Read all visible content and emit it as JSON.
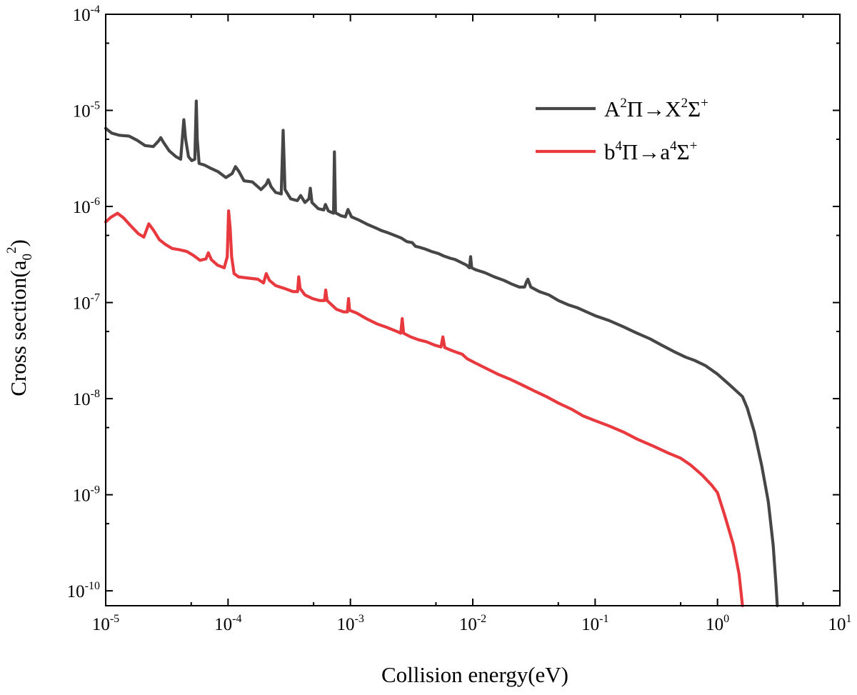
{
  "chart_data": {
    "type": "line",
    "scale": {
      "x": "log",
      "y": "log"
    },
    "xlabel": "Collision energy(eV)",
    "ylabel": "Cross section(a0^2)",
    "ylabel_parts": {
      "base": "Cross section(a",
      "sub": "0",
      "sup": "2",
      "close": ")"
    },
    "xlim": [
      1e-05,
      10
    ],
    "ylim": [
      7e-11,
      0.0001
    ],
    "x_ticks": [
      {
        "value": 1e-05,
        "base": "10",
        "exp": "-5"
      },
      {
        "value": 0.0001,
        "base": "10",
        "exp": "-4"
      },
      {
        "value": 0.001,
        "base": "10",
        "exp": "-3"
      },
      {
        "value": 0.01,
        "base": "10",
        "exp": "-2"
      },
      {
        "value": 0.1,
        "base": "10",
        "exp": "-1"
      },
      {
        "value": 1,
        "base": "10",
        "exp": "0"
      },
      {
        "value": 10,
        "base": "10",
        "exp": "1"
      }
    ],
    "y_ticks": [
      {
        "value": 1e-10,
        "base": "10",
        "exp": "-10"
      },
      {
        "value": 1e-09,
        "base": "10",
        "exp": "-9"
      },
      {
        "value": 1e-08,
        "base": "10",
        "exp": "-8"
      },
      {
        "value": 1e-07,
        "base": "10",
        "exp": "-7"
      },
      {
        "value": 1e-06,
        "base": "10",
        "exp": "-6"
      },
      {
        "value": 1e-05,
        "base": "10",
        "exp": "-5"
      },
      {
        "value": 0.0001,
        "base": "10",
        "exp": "-4"
      }
    ],
    "legend_position": "top-right",
    "series": [
      {
        "name": "A2Π→X2Σ+",
        "label_parts": [
          "A",
          "2",
          "Π→X",
          "2",
          "Σ",
          "+"
        ],
        "color": "#464646",
        "points": [
          [
            1e-05,
            6.5e-06
          ],
          [
            1.12e-05,
            5.8e-06
          ],
          [
            1.3e-05,
            5.5e-06
          ],
          [
            1.55e-05,
            5.4e-06
          ],
          [
            1.8e-05,
            4.9e-06
          ],
          [
            2.1e-05,
            4.3e-06
          ],
          [
            2.45e-05,
            4.2e-06
          ],
          [
            2.7e-05,
            4.8e-06
          ],
          [
            2.82e-05,
            5.2e-06
          ],
          [
            2.95e-05,
            4.7e-06
          ],
          [
            3.3e-05,
            3.8e-06
          ],
          [
            3.75e-05,
            3.3e-06
          ],
          [
            4.1e-05,
            3.1e-06
          ],
          [
            4.25e-05,
            5.5e-06
          ],
          [
            4.35e-05,
            8e-06
          ],
          [
            4.5e-05,
            5e-06
          ],
          [
            4.75e-05,
            3.3e-06
          ],
          [
            5.05e-05,
            3e-06
          ],
          [
            5.35e-05,
            3.1e-06
          ],
          [
            5.5e-05,
            1.25e-05
          ],
          [
            5.6e-05,
            5e-06
          ],
          [
            5.8e-05,
            2.8e-06
          ],
          [
            6.4e-05,
            2.7e-06
          ],
          [
            7.2e-05,
            2.5e-06
          ],
          [
            8.3e-05,
            2.3e-06
          ],
          [
            9.6e-05,
            2e-06
          ],
          [
            0.000108,
            2.2e-06
          ],
          [
            0.000115,
            2.6e-06
          ],
          [
            0.000123,
            2.3e-06
          ],
          [
            0.000135,
            1.85e-06
          ],
          [
            0.000158,
            1.8e-06
          ],
          [
            0.000186,
            1.5e-06
          ],
          [
            0.000205,
            1.7e-06
          ],
          [
            0.000213,
            1.9e-06
          ],
          [
            0.000225,
            1.6e-06
          ],
          [
            0.000245,
            1.4e-06
          ],
          [
            0.000272,
            1.35e-06
          ],
          [
            0.000282,
            6.2e-06
          ],
          [
            0.000292,
            1.5e-06
          ],
          [
            0.000325,
            1.2e-06
          ],
          [
            0.000368,
            1.15e-06
          ],
          [
            0.000392,
            1.3e-06
          ],
          [
            0.000425,
            1.1e-06
          ],
          [
            0.000458,
            1.2e-06
          ],
          [
            0.00047,
            1.55e-06
          ],
          [
            0.000485,
            1.1e-06
          ],
          [
            0.000545,
            9.5e-07
          ],
          [
            0.000605,
            9.2e-07
          ],
          [
            0.000625,
            1.05e-06
          ],
          [
            0.00066,
            9e-07
          ],
          [
            0.000698,
            8.7e-07
          ],
          [
            0.000728,
            8.5e-07
          ],
          [
            0.00074,
            3.7e-06
          ],
          [
            0.000755,
            8.6e-07
          ],
          [
            0.00084,
            8e-07
          ],
          [
            0.00091,
            7.8e-07
          ],
          [
            0.000955,
            9.3e-07
          ],
          [
            0.00102,
            7.8e-07
          ],
          [
            0.00118,
            7.2e-07
          ],
          [
            0.00138,
            6.5e-07
          ],
          [
            0.0016,
            6e-07
          ],
          [
            0.0018,
            5.6e-07
          ],
          [
            0.00205,
            5.3e-07
          ],
          [
            0.0023,
            5e-07
          ],
          [
            0.0026,
            4.7e-07
          ],
          [
            0.0029,
            4.3e-07
          ],
          [
            0.0032,
            4.2e-07
          ],
          [
            0.0034,
            3.85e-07
          ],
          [
            0.0037,
            3.75e-07
          ],
          [
            0.0041,
            3.6e-07
          ],
          [
            0.0046,
            3.4e-07
          ],
          [
            0.0052,
            3.25e-07
          ],
          [
            0.0058,
            3.05e-07
          ],
          [
            0.0065,
            2.9e-07
          ],
          [
            0.0072,
            2.8e-07
          ],
          [
            0.0081,
            2.6e-07
          ],
          [
            0.0089,
            2.45e-07
          ],
          [
            0.0094,
            2.3e-07
          ],
          [
            0.0096,
            3e-07
          ],
          [
            0.0098,
            2.3e-07
          ],
          [
            0.0105,
            2.2e-07
          ],
          [
            0.0125,
            2.05e-07
          ],
          [
            0.015,
            1.85e-07
          ],
          [
            0.018,
            1.7e-07
          ],
          [
            0.021,
            1.55e-07
          ],
          [
            0.024,
            1.45e-07
          ],
          [
            0.0265,
            1.45e-07
          ],
          [
            0.0275,
            1.65e-07
          ],
          [
            0.0282,
            1.75e-07
          ],
          [
            0.0298,
            1.45e-07
          ],
          [
            0.035,
            1.3e-07
          ],
          [
            0.042,
            1.2e-07
          ],
          [
            0.05,
            1.05e-07
          ],
          [
            0.06,
            9.5e-08
          ],
          [
            0.072,
            8.8e-08
          ],
          [
            0.085,
            8e-08
          ],
          [
            0.1,
            7.3e-08
          ],
          [
            0.13,
            6.5e-08
          ],
          [
            0.17,
            5.6e-08
          ],
          [
            0.22,
            4.8e-08
          ],
          [
            0.28,
            4.2e-08
          ],
          [
            0.35,
            3.6e-08
          ],
          [
            0.45,
            3.05e-08
          ],
          [
            0.55,
            2.7e-08
          ],
          [
            0.65,
            2.5e-08
          ],
          [
            0.8,
            2.2e-08
          ],
          [
            1.0,
            1.8e-08
          ],
          [
            1.25,
            1.4e-08
          ],
          [
            1.6,
            1.05e-08
          ],
          [
            1.75,
            8e-09
          ],
          [
            2.0,
            4.5e-09
          ],
          [
            2.3,
            2e-09
          ],
          [
            2.6,
            8.5e-10
          ],
          [
            2.85,
            3e-10
          ],
          [
            3.0,
            1.2e-10
          ],
          [
            3.08,
            7e-11
          ]
        ]
      },
      {
        "name": "b4Π→a4Σ+",
        "label_parts": [
          "b",
          "4",
          "Π→a",
          "4",
          "Σ",
          "+"
        ],
        "color": "#e8393f",
        "points": [
          [
            1e-05,
            6.9e-07
          ],
          [
            1.1e-05,
            7.7e-07
          ],
          [
            1.25e-05,
            8.5e-07
          ],
          [
            1.4e-05,
            7.6e-07
          ],
          [
            1.6e-05,
            6.3e-07
          ],
          [
            1.85e-05,
            5.2e-07
          ],
          [
            2.05e-05,
            4.8e-07
          ],
          [
            2.25e-05,
            6.6e-07
          ],
          [
            2.45e-05,
            5.7e-07
          ],
          [
            2.75e-05,
            4.5e-07
          ],
          [
            3.1e-05,
            4e-07
          ],
          [
            3.5e-05,
            3.65e-07
          ],
          [
            4e-05,
            3.55e-07
          ],
          [
            4.6e-05,
            3.4e-07
          ],
          [
            5.2e-05,
            3.1e-07
          ],
          [
            5.9e-05,
            2.75e-07
          ],
          [
            6.6e-05,
            2.85e-07
          ],
          [
            6.9e-05,
            3.3e-07
          ],
          [
            7.3e-05,
            2.8e-07
          ],
          [
            8.2e-05,
            2.45e-07
          ],
          [
            9.3e-05,
            2.3e-07
          ],
          [
            9.85e-05,
            3e-07
          ],
          [
            0.000101,
            9e-07
          ],
          [
            0.000104,
            6e-07
          ],
          [
            0.000107,
            3e-07
          ],
          [
            0.000112,
            2e-07
          ],
          [
            0.000122,
            1.85e-07
          ],
          [
            0.000145,
            1.8e-07
          ],
          [
            0.000175,
            1.75e-07
          ],
          [
            0.000195,
            1.6e-07
          ],
          [
            0.000205,
            2e-07
          ],
          [
            0.000218,
            1.7e-07
          ],
          [
            0.000245,
            1.5e-07
          ],
          [
            0.00029,
            1.4e-07
          ],
          [
            0.00034,
            1.3e-07
          ],
          [
            0.00037,
            1.3e-07
          ],
          [
            0.000378,
            1.85e-07
          ],
          [
            0.000388,
            1.4e-07
          ],
          [
            0.000425,
            1.2e-07
          ],
          [
            0.00049,
            1.1e-07
          ],
          [
            0.00056,
            1.05e-07
          ],
          [
            0.000615,
            1.05e-07
          ],
          [
            0.000628,
            1.35e-07
          ],
          [
            0.000645,
            1.05e-07
          ],
          [
            0.00072,
            9.2e-08
          ],
          [
            0.00077,
            8.5e-08
          ],
          [
            0.00088,
            8e-08
          ],
          [
            0.000945,
            8e-08
          ],
          [
            0.000965,
            1.1e-07
          ],
          [
            0.000985,
            8.3e-08
          ],
          [
            0.00112,
            7.8e-08
          ],
          [
            0.00135,
            6.8e-08
          ],
          [
            0.00165,
            6e-08
          ],
          [
            0.002,
            5.5e-08
          ],
          [
            0.0024,
            5e-08
          ],
          [
            0.00258,
            4.8e-08
          ],
          [
            0.00265,
            6.8e-08
          ],
          [
            0.00272,
            4.8e-08
          ],
          [
            0.0031,
            4.4e-08
          ],
          [
            0.0036,
            4.1e-08
          ],
          [
            0.0042,
            3.9e-08
          ],
          [
            0.0049,
            3.6e-08
          ],
          [
            0.0055,
            3.45e-08
          ],
          [
            0.0057,
            4.4e-08
          ],
          [
            0.0059,
            3.4e-08
          ],
          [
            0.0066,
            3.2e-08
          ],
          [
            0.0073,
            3.05e-08
          ],
          [
            0.0082,
            2.9e-08
          ],
          [
            0.009,
            2.6e-08
          ],
          [
            0.0105,
            2.35e-08
          ],
          [
            0.013,
            2.05e-08
          ],
          [
            0.016,
            1.8e-08
          ],
          [
            0.02,
            1.6e-08
          ],
          [
            0.025,
            1.4e-08
          ],
          [
            0.032,
            1.2e-08
          ],
          [
            0.04,
            1.05e-08
          ],
          [
            0.05,
            9e-09
          ],
          [
            0.065,
            7.7e-09
          ],
          [
            0.08,
            6.6e-09
          ],
          [
            0.1,
            5.9e-09
          ],
          [
            0.13,
            5.2e-09
          ],
          [
            0.17,
            4.5e-09
          ],
          [
            0.22,
            3.8e-09
          ],
          [
            0.3,
            3.2e-09
          ],
          [
            0.4,
            2.7e-09
          ],
          [
            0.5,
            2.4e-09
          ],
          [
            0.6,
            2.05e-09
          ],
          [
            0.75,
            1.6e-09
          ],
          [
            0.9,
            1.25e-09
          ],
          [
            1.0,
            1.05e-09
          ],
          [
            1.15,
            6e-10
          ],
          [
            1.35,
            3e-10
          ],
          [
            1.5,
            1.5e-10
          ],
          [
            1.6,
            7e-11
          ]
        ]
      }
    ]
  }
}
